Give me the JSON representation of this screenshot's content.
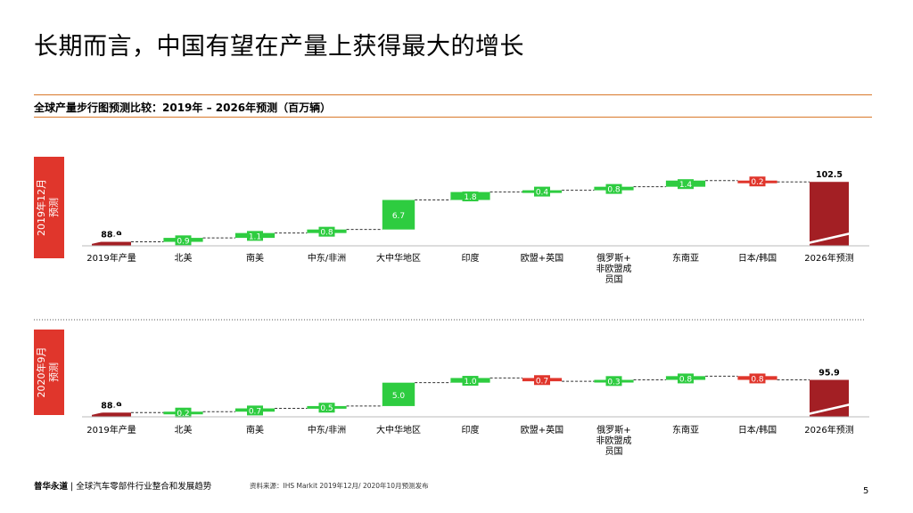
{
  "slide": {
    "title": "长期而言，中国有望在产量上获得最大的增长",
    "subtitle": "全球产量步行图预测比较：2019年 – 2026年预测（百万辆）",
    "footer_brand": "普华永道",
    "footer_separator": "|",
    "footer_report": "全球汽车零部件行业整合和发展趋势",
    "footer_source": "资料来源：IHS Markit 2019年12月/ 2020年10月预测发布",
    "page_number": "5"
  },
  "colors": {
    "accent_rule": "#d9782a",
    "total_bar": "#a31f24",
    "increase": "#2ecc40",
    "decrease": "#e0362c",
    "badge_2019": "#e0362c",
    "badge_2020": "#e0362c"
  },
  "chart_data": [
    {
      "type": "waterfall",
      "panel_label": "2019年12月\n预测",
      "categories": [
        "2019年产量",
        "北美",
        "南美",
        "中东/非洲",
        "大中华地区",
        "印度",
        "欧盟+英国",
        "俄罗斯+非欧盟成员国",
        "东南亚",
        "日本/韩国",
        "2026年预测"
      ],
      "category_label_lines": [
        [
          "2019年产量"
        ],
        [
          "北美"
        ],
        [
          "南美"
        ],
        [
          "中东/非洲"
        ],
        [
          "大中华地区"
        ],
        [
          "印度"
        ],
        [
          "欧盟+英国"
        ],
        [
          "俄罗斯+",
          "非欧盟成",
          "员国"
        ],
        [
          "东南亚"
        ],
        [
          "日本/韩国"
        ],
        [
          "2026年预测"
        ]
      ],
      "start": 88.9,
      "end": 102.5,
      "changes": [
        0.9,
        1.1,
        0.8,
        6.7,
        1.8,
        0.4,
        0.8,
        1.4,
        -0.2
      ],
      "value_labels": [
        "88.9",
        "0.9",
        "1.1",
        "0.8",
        "6.7",
        "1.8",
        "0.4",
        "0.8",
        "1.4",
        "0.2",
        "102.5"
      ],
      "axis_break": true
    },
    {
      "type": "waterfall",
      "panel_label": "2020年9月\n预测",
      "categories": [
        "2019年产量",
        "北美",
        "南美",
        "中东/非洲",
        "大中华地区",
        "印度",
        "欧盟+英国",
        "俄罗斯+非欧盟成员国",
        "东南亚",
        "日本/韩国",
        "2026年预测"
      ],
      "category_label_lines": [
        [
          "2019年产量"
        ],
        [
          "北美"
        ],
        [
          "南美"
        ],
        [
          "中东/非洲"
        ],
        [
          "大中华地区"
        ],
        [
          "印度"
        ],
        [
          "欧盟+英国"
        ],
        [
          "俄罗斯+",
          "非欧盟成",
          "员国"
        ],
        [
          "东南亚"
        ],
        [
          "日本/韩国"
        ],
        [
          "2026年预测"
        ]
      ],
      "start": 88.9,
      "end": 95.9,
      "changes": [
        0.2,
        0.7,
        0.5,
        5.0,
        1.0,
        -0.7,
        0.3,
        0.8,
        -0.8
      ],
      "value_labels": [
        "88.9",
        "0.2",
        "0.7",
        "0.5",
        "5.0",
        "1.0",
        "0.7",
        "0.3",
        "0.8",
        "0.8",
        "95.9"
      ],
      "axis_break": true
    }
  ]
}
